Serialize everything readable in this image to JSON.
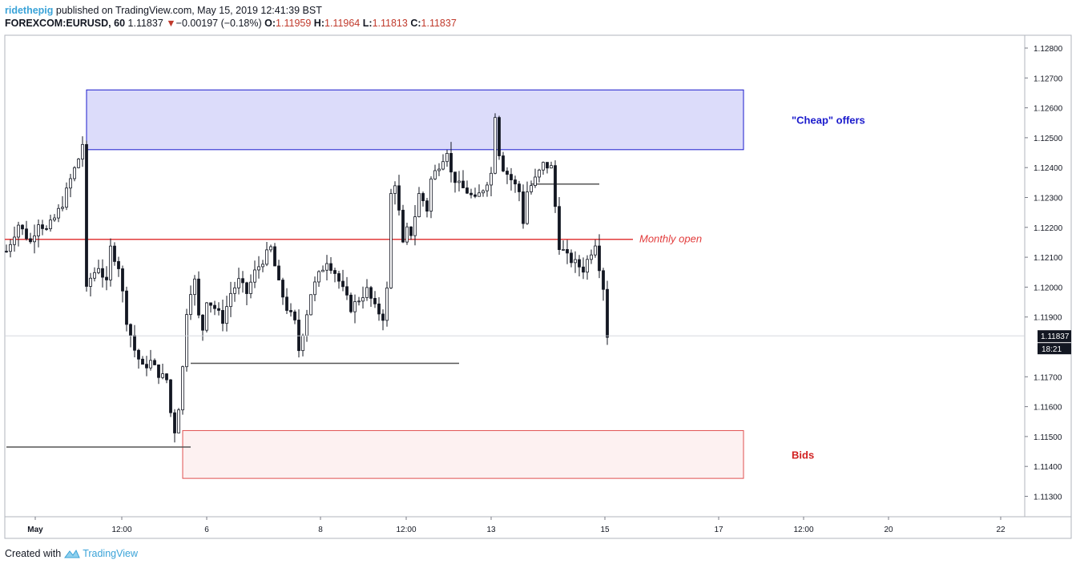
{
  "header": {
    "author": "ridethepig",
    "published_text": "published on TradingView.com, May 15, 2019 12:41:39 BST",
    "symbol": "FOREXCOM:EURUSD, 60",
    "last": "1.11837",
    "change": "−0.00197 (−0.18%)",
    "o_label": "O:",
    "o_val": "1.11959",
    "h_label": "H:",
    "h_val": "1.11964",
    "l_label": "L:",
    "l_val": "1.11813",
    "c_label": "C:",
    "c_val": "1.11837"
  },
  "footer": {
    "created_with": "Created with",
    "brand": "TradingView"
  },
  "colors": {
    "offers_fill": "#dcdcfa",
    "offers_border": "#1a1acc",
    "bids_fill": "#fdf1f1",
    "bids_border": "#e05050",
    "monthly_open": "#e23b3b",
    "candle": "#131722"
  },
  "chart_data": {
    "type": "candlestick",
    "ylim": [
      1.1126,
      1.1288
    ],
    "y_ticks": [
      "1.12800",
      "1.12700",
      "1.12600",
      "1.12500",
      "1.12400",
      "1.12300",
      "1.12200",
      "1.12100",
      "1.12000",
      "1.11900",
      "1.11837",
      "1.11700",
      "1.11600",
      "1.11500",
      "1.11400",
      "1.11300"
    ],
    "x_ticks": [
      "May",
      "12:00",
      "6",
      "8",
      "12:00",
      "13",
      "15",
      "17",
      "12:00",
      "20",
      "22"
    ],
    "last_price_label": "1.11837",
    "countdown_label": "18:21",
    "last_price": 1.11837,
    "close_path": [
      [
        0,
        1.1212
      ],
      [
        3,
        1.1221
      ],
      [
        6,
        1.1215
      ],
      [
        8,
        1.1222
      ],
      [
        10,
        1.1219
      ],
      [
        12,
        1.1223
      ],
      [
        14,
        1.1228
      ],
      [
        16,
        1.1236
      ],
      [
        18,
        1.1243
      ],
      [
        19,
        1.1248
      ],
      [
        19.3,
        1.1196
      ],
      [
        21,
        1.1203
      ],
      [
        23,
        1.1207
      ],
      [
        25,
        1.1201
      ],
      [
        26,
        1.1213
      ],
      [
        28,
        1.1207
      ],
      [
        30,
        1.1189
      ],
      [
        32,
        1.1179
      ],
      [
        34,
        1.1173
      ],
      [
        36,
        1.1175
      ],
      [
        38,
        1.1171
      ],
      [
        40,
        1.1169
      ],
      [
        41,
        1.1158
      ],
      [
        42,
        1.1152
      ],
      [
        43,
        1.116
      ],
      [
        44,
        1.1173
      ],
      [
        45,
        1.1192
      ],
      [
        46,
        1.1199
      ],
      [
        47,
        1.1202
      ],
      [
        48,
        1.119
      ],
      [
        49,
        1.1186
      ],
      [
        50,
        1.1196
      ],
      [
        52,
        1.1193
      ],
      [
        54,
        1.1189
      ],
      [
        56,
        1.1198
      ],
      [
        58,
        1.1202
      ],
      [
        60,
        1.1198
      ],
      [
        62,
        1.1205
      ],
      [
        64,
        1.1209
      ],
      [
        66,
        1.1213
      ],
      [
        68,
        1.1201
      ],
      [
        70,
        1.1193
      ],
      [
        72,
        1.1188
      ],
      [
        73,
        1.1179
      ],
      [
        74,
        1.1185
      ],
      [
        76,
        1.1198
      ],
      [
        78,
        1.1204
      ],
      [
        80,
        1.1209
      ],
      [
        82,
        1.1205
      ],
      [
        84,
        1.1199
      ],
      [
        86,
        1.1193
      ],
      [
        88,
        1.1196
      ],
      [
        90,
        1.1199
      ],
      [
        92,
        1.1193
      ],
      [
        94,
        1.119
      ],
      [
        95,
        1.1199
      ],
      [
        96,
        1.1231
      ],
      [
        97,
        1.1235
      ],
      [
        98,
        1.1225
      ],
      [
        99,
        1.1214
      ],
      [
        100,
        1.1219
      ],
      [
        101,
        1.1218
      ],
      [
        102,
        1.1224
      ],
      [
        103,
        1.1231
      ],
      [
        104,
        1.1229
      ],
      [
        105,
        1.1226
      ],
      [
        106,
        1.1236
      ],
      [
        108,
        1.1241
      ],
      [
        110,
        1.1246
      ],
      [
        111,
        1.1238
      ],
      [
        113,
        1.1234
      ],
      [
        115,
        1.1232
      ],
      [
        117,
        1.1229
      ],
      [
        119,
        1.1233
      ],
      [
        121,
        1.1238
      ],
      [
        122,
        1.1258
      ],
      [
        123,
        1.1245
      ],
      [
        124,
        1.124
      ],
      [
        126,
        1.1236
      ],
      [
        128,
        1.1232
      ],
      [
        129,
        1.1222
      ],
      [
        130,
        1.1232
      ],
      [
        132,
        1.1236
      ],
      [
        134,
        1.1241
      ],
      [
        136,
        1.124
      ],
      [
        137,
        1.1227
      ],
      [
        138,
        1.1214
      ],
      [
        140,
        1.121
      ],
      [
        142,
        1.1208
      ],
      [
        144,
        1.1206
      ],
      [
        146,
        1.1212
      ],
      [
        147,
        1.1215
      ],
      [
        148,
        1.1207
      ],
      [
        149,
        1.12
      ],
      [
        150,
        1.1184
      ]
    ],
    "levels": [
      {
        "price": 1.12345,
        "from_index": 131,
        "to_index": 148
      },
      {
        "price": 1.11745,
        "from_index": 46,
        "to_index": 113
      },
      {
        "price": 1.11465,
        "from_index": 0,
        "to_index": 46
      }
    ],
    "monthly_open": {
      "label": "Monthly open",
      "price": 1.1216
    },
    "offers_zone": {
      "label": "\"Cheap\" offers",
      "top": 1.1266,
      "bottom": 1.1246,
      "from_index": 20,
      "to_index": 184
    },
    "bids_zone": {
      "label": "Bids",
      "top": 1.1152,
      "bottom": 1.1136,
      "from_index": 44,
      "to_index": 184
    }
  }
}
